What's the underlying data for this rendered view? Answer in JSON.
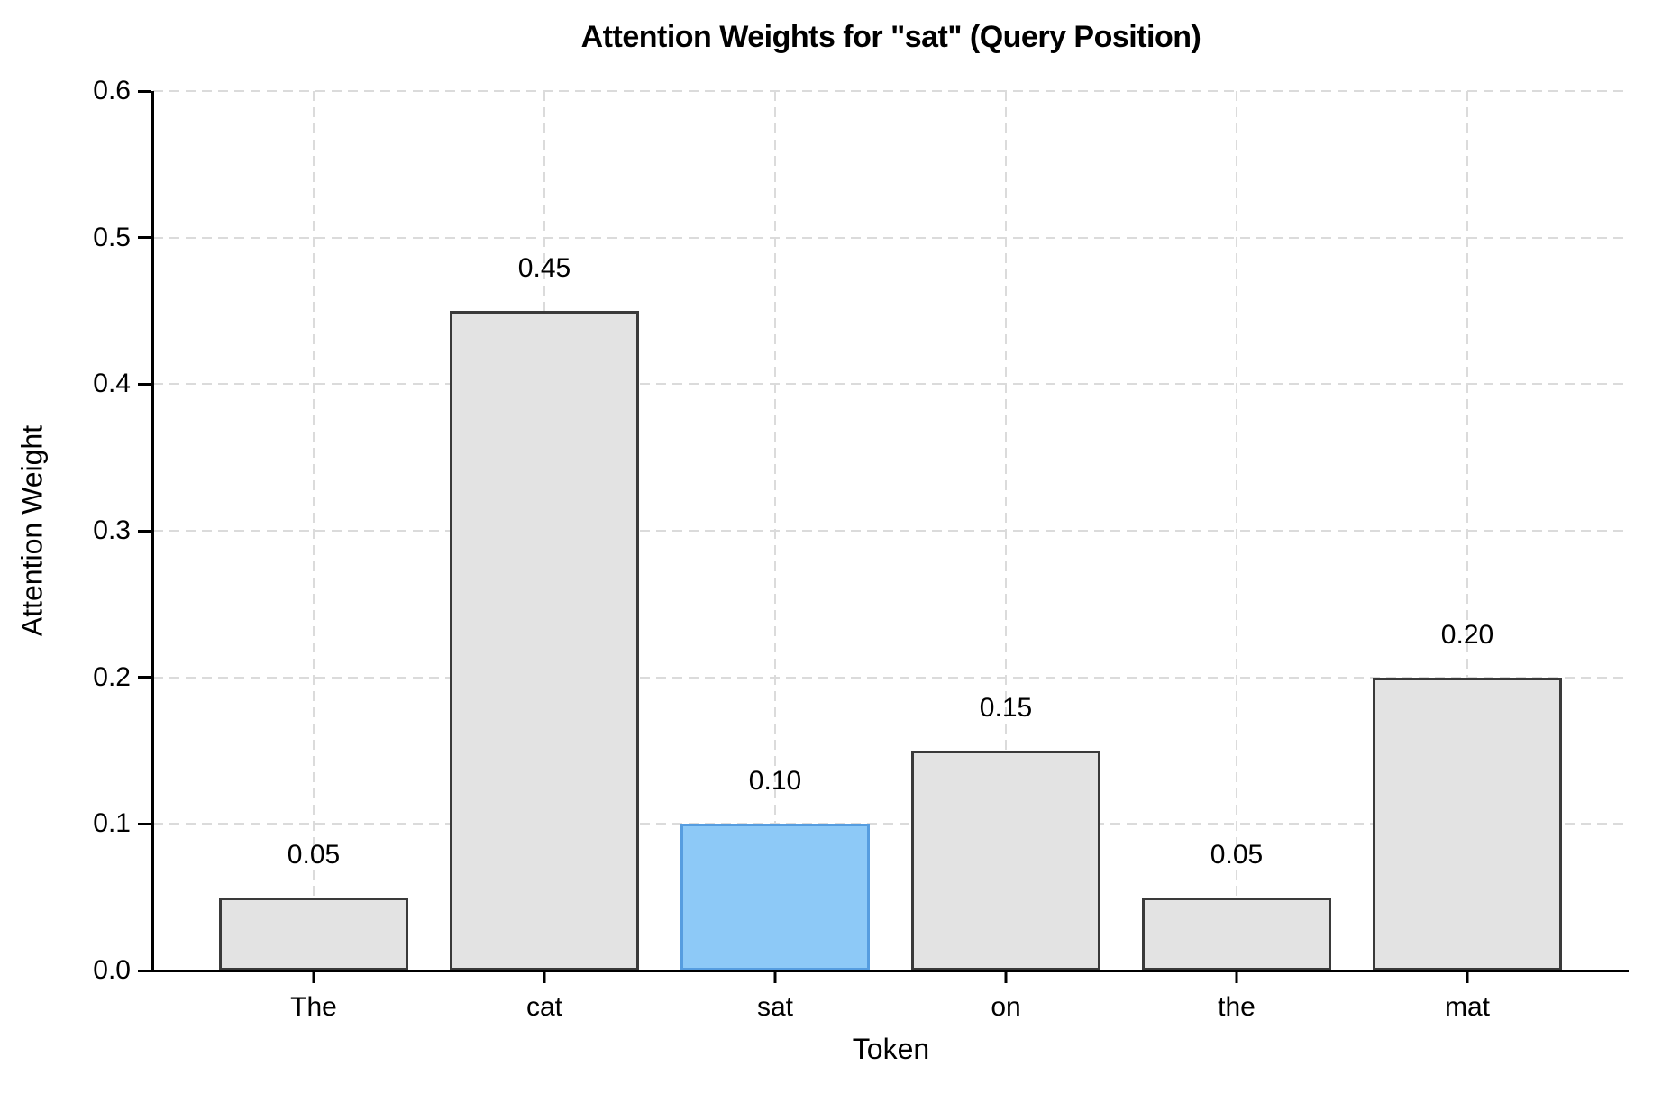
{
  "chart_data": {
    "type": "bar",
    "title": "Attention Weights for \"sat\" (Query Position)",
    "xlabel": "Token",
    "ylabel": "Attention Weight",
    "categories": [
      "The",
      "cat",
      "sat",
      "on",
      "the",
      "mat"
    ],
    "values": [
      0.05,
      0.45,
      0.1,
      0.15,
      0.05,
      0.2
    ],
    "bar_value_labels": [
      "0.05",
      "0.45",
      "0.10",
      "0.15",
      "0.05",
      "0.20"
    ],
    "highlight_category": "sat",
    "highlight_index": 2,
    "ylim": [
      0,
      0.6
    ],
    "yticks": [
      0.0,
      0.1,
      0.2,
      0.3,
      0.4,
      0.5,
      0.6
    ],
    "ytick_labels": [
      "0.0",
      "0.1",
      "0.2",
      "0.3",
      "0.4",
      "0.5",
      "0.6"
    ],
    "grid": "dashed-both-axes",
    "legend": "none",
    "colors": {
      "bar_fill": "#e3e3e3",
      "bar_edge": "#3a3a3a",
      "highlight_fill": "#8dc9f7",
      "highlight_edge": "#569de0",
      "grid": "#dbdbdb",
      "axis": "#000000",
      "background": "#ffffff",
      "text": "#000000"
    }
  }
}
